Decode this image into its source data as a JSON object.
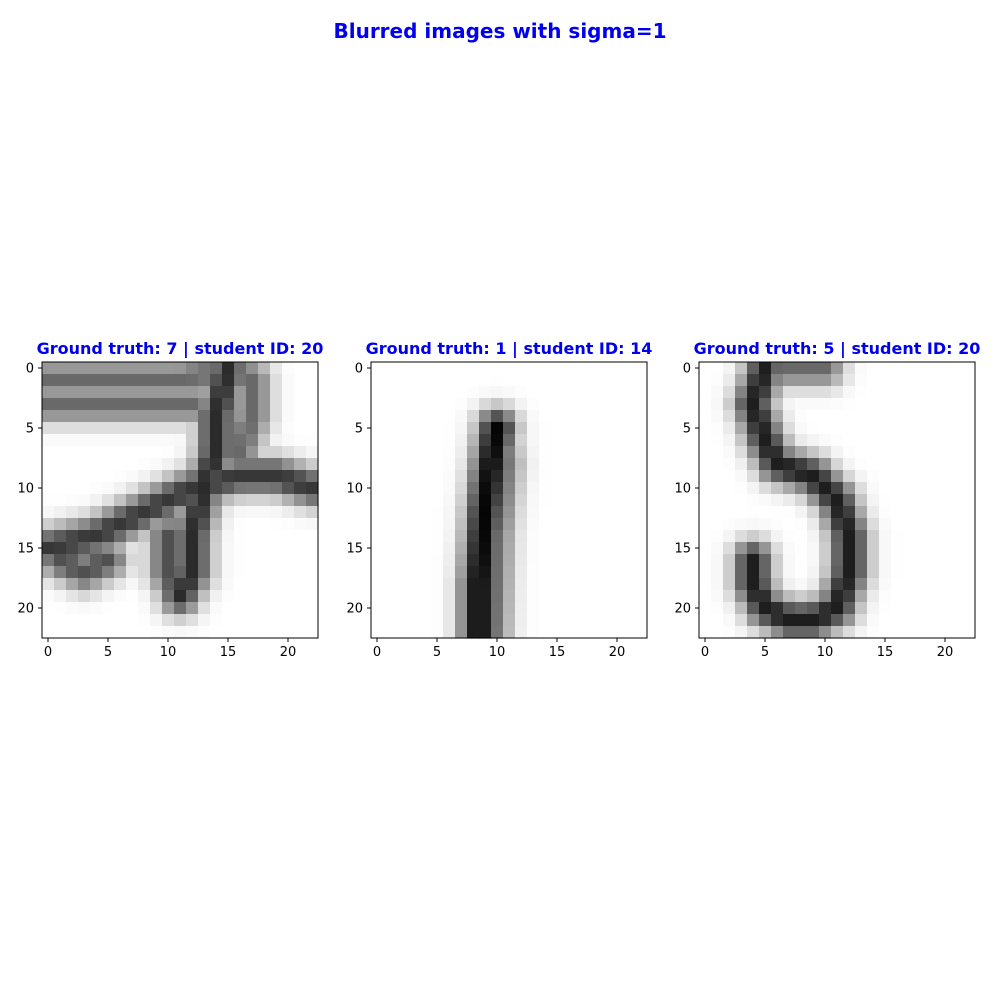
{
  "figure": {
    "title": "Blurred images with sigma=1",
    "title_color": "#0000ee"
  },
  "chart_data": [
    {
      "type": "heatmap",
      "title": "Ground truth: 7 | student ID: 20",
      "colormap": "gray_r",
      "value_range": [
        0,
        1
      ],
      "xlim": [
        -0.5,
        22.5
      ],
      "ylim": [
        22.5,
        -0.5
      ],
      "xticks": [
        0,
        5,
        10,
        15,
        20
      ],
      "yticks": [
        0,
        5,
        10,
        15,
        20
      ],
      "grid": false,
      "digit_strokes": [
        {
          "points": [
            [
              0,
              1
            ],
            [
              6,
              1
            ],
            [
              11,
              1
            ],
            [
              15,
              0
            ],
            [
              17,
              1
            ]
          ],
          "intensity": 0.6
        },
        {
          "points": [
            [
              0,
              3
            ],
            [
              7,
              3
            ],
            [
              12,
              3
            ]
          ],
          "intensity": 0.6
        },
        {
          "points": [
            [
              15,
              0
            ],
            [
              14,
              4
            ],
            [
              14,
              7
            ],
            [
              13,
              10
            ],
            [
              12,
              14
            ],
            [
              12,
              17
            ],
            [
              11,
              19
            ]
          ],
          "intensity": 0.85
        },
        {
          "points": [
            [
              17,
              1
            ],
            [
              17,
              4
            ],
            [
              16,
              7
            ]
          ],
          "intensity": 0.6
        },
        {
          "points": [
            [
              0,
              15
            ],
            [
              4,
              14
            ],
            [
              8,
              12
            ],
            [
              12,
              10
            ],
            [
              16,
              9
            ],
            [
              19,
              9
            ],
            [
              22,
              10
            ]
          ],
          "intensity": 0.8
        },
        {
          "points": [
            [
              1,
              16
            ],
            [
              3,
              17
            ],
            [
              5,
              16
            ]
          ],
          "intensity": 0.7
        },
        {
          "points": [
            [
              10,
              14
            ],
            [
              10,
              17
            ],
            [
              11,
              19
            ]
          ],
          "intensity": 0.7
        }
      ]
    },
    {
      "type": "heatmap",
      "title": "Ground truth: 1 | student ID: 14",
      "colormap": "gray_r",
      "value_range": [
        0,
        1
      ],
      "xlim": [
        -0.5,
        22.5
      ],
      "ylim": [
        22.5,
        -0.5
      ],
      "xticks": [
        0,
        5,
        10,
        15,
        20
      ],
      "yticks": [
        0,
        5,
        10,
        15,
        20
      ],
      "grid": false,
      "digit_strokes": [
        {
          "points": [
            [
              10,
              5
            ],
            [
              9.5,
              8
            ],
            [
              9,
              12
            ],
            [
              8.5,
              18
            ],
            [
              8.5,
              23
            ]
          ],
          "intensity": 1.0
        },
        {
          "points": [
            [
              10,
              5
            ],
            [
              10.5,
              8
            ],
            [
              9.8,
              14
            ],
            [
              9.5,
              23
            ]
          ],
          "intensity": 0.6
        }
      ]
    },
    {
      "type": "heatmap",
      "title": "Ground truth: 5 | student ID: 20",
      "colormap": "gray_r",
      "value_range": [
        0,
        1
      ],
      "xlim": [
        -0.5,
        22.5
      ],
      "ylim": [
        22.5,
        -0.5
      ],
      "xticks": [
        0,
        5,
        10,
        15,
        20
      ],
      "yticks": [
        0,
        5,
        10,
        15,
        20
      ],
      "grid": false,
      "digit_strokes": [
        {
          "points": [
            [
              10,
              0
            ],
            [
              7,
              0
            ],
            [
              5,
              0
            ]
          ],
          "intensity": 0.6
        },
        {
          "points": [
            [
              5,
              0
            ],
            [
              4,
              3
            ],
            [
              5,
              6
            ],
            [
              6,
              8
            ]
          ],
          "intensity": 0.9
        },
        {
          "points": [
            [
              6,
              8
            ],
            [
              9,
              9
            ],
            [
              11,
              11
            ],
            [
              12,
              14
            ],
            [
              12,
              17
            ],
            [
              11,
              20
            ],
            [
              9,
              21
            ],
            [
              7,
              21
            ],
            [
              5,
              20
            ],
            [
              4,
              18
            ],
            [
              4,
              16
            ]
          ],
          "intensity": 0.9
        }
      ]
    }
  ]
}
